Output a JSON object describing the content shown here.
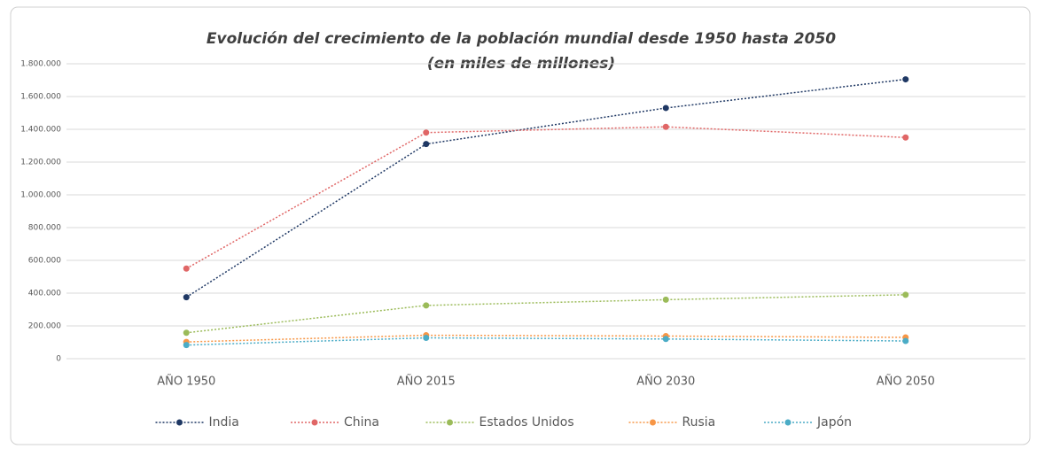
{
  "chart_data": {
    "type": "line",
    "title": "Evolución del crecimiento de la población mundial desde 1950 hasta 2050",
    "subtitle": "(en miles de millones)",
    "categories": [
      "AÑO 1950",
      "AÑO 2015",
      "AÑO 2030",
      "AÑO 2050"
    ],
    "series": [
      {
        "name": "India",
        "color": "#1f3864",
        "values": [
          375000,
          1310000,
          1530000,
          1705000
        ]
      },
      {
        "name": "China",
        "color": "#e06666",
        "values": [
          550000,
          1380000,
          1415000,
          1350000
        ]
      },
      {
        "name": "Estados Unidos",
        "color": "#9bbb59",
        "values": [
          158000,
          325000,
          360000,
          390000
        ]
      },
      {
        "name": "Rusia",
        "color": "#f79646",
        "values": [
          102000,
          143000,
          138000,
          130000
        ]
      },
      {
        "name": "Japón",
        "color": "#4bacc6",
        "values": [
          83000,
          127000,
          120000,
          108000
        ]
      }
    ],
    "ylim": [
      0,
      1800000
    ],
    "yticks": [
      0,
      {
        "value": 200000,
        "label": "200.000"
      },
      {
        "value": 400000,
        "label": "400.000"
      },
      {
        "value": 600000,
        "label": "600.000"
      },
      {
        "value": 800000,
        "label": "800.000"
      },
      {
        "value": 1000000,
        "label": "1.000.000"
      },
      {
        "value": 1200000,
        "label": "1.200.000"
      },
      {
        "value": 1400000,
        "label": "1.400.000"
      },
      {
        "value": 1600000,
        "label": "1.600.000"
      },
      {
        "value": 1800000,
        "label": "1.800.000"
      }
    ],
    "grid": true,
    "legend": "bottom"
  }
}
